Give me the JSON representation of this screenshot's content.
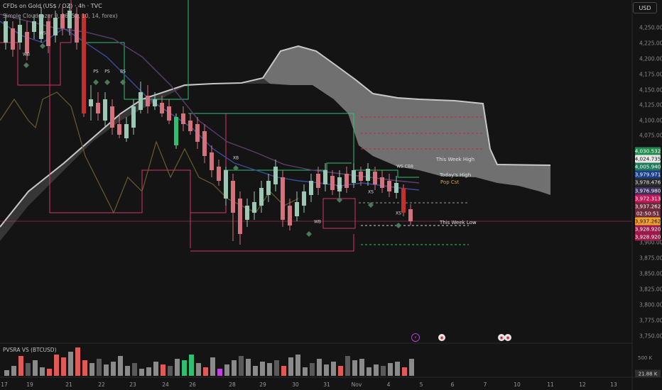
{
  "header": {
    "symbol_title": "CFDs on Gold (US$ / OZ) · 4h · TVC",
    "indicator_line": "Simple Cloudgazer 9, 26, 52, 10, 14, forex)"
  },
  "currency_button": "USD",
  "price_axis": [
    "4,250.000",
    "4,225.000",
    "4,200.000",
    "4,175.000",
    "4,150.000",
    "4,125.000",
    "4,100.000",
    "4,075.000",
    "3,900.000",
    "3,875.000",
    "3,850.000",
    "3,825.000",
    "3,800.000",
    "3,775.000",
    "3,750.000"
  ],
  "price_badges": [
    {
      "text": "4,030.532",
      "bg": "#1f8a4c",
      "fg": "#ffffff"
    },
    {
      "text": "4,024.735",
      "bg": "#e8e8e8",
      "fg": "#111111"
    },
    {
      "text": "4,005.940",
      "bg": "#1e7a5a",
      "fg": "#ffffff"
    },
    {
      "text": "3,979.971",
      "bg": "#1a3f8a",
      "fg": "#ffffff"
    },
    {
      "text": "3,978.476",
      "bg": "#2a2a2a",
      "fg": "#e0e0e0"
    },
    {
      "text": "3,976.980",
      "bg": "#3b2f5c",
      "fg": "#ffffff"
    },
    {
      "text": "3,972.313",
      "bg": "#c2185b",
      "fg": "#ffffff"
    },
    {
      "text": "3,937.262",
      "bg": "#6b2a3a",
      "fg": "#ffffff"
    },
    {
      "text": "02:50:51",
      "bg": "#6b2a3a",
      "fg": "#ffffff"
    },
    {
      "text": "3,937.262",
      "bg": "#f0a030",
      "fg": "#111111"
    },
    {
      "text": "3,928.920",
      "bg": "#9c1a4a",
      "fg": "#ffffff"
    },
    {
      "text": "3,928.920",
      "bg": "#9c1a4a",
      "fg": "#ffffff"
    }
  ],
  "time_axis": [
    "17",
    "19",
    "21",
    "22",
    "23",
    "24",
    "26",
    "28",
    "29",
    "30",
    "31",
    "Nov",
    "4",
    "5",
    "6",
    "7",
    "10",
    "11",
    "12",
    "13"
  ],
  "annotations": [
    "WB",
    "WS",
    "PS",
    "PS",
    "BS",
    "XB",
    "SB",
    "XS",
    "XS",
    "WB",
    "WS CB8"
  ],
  "levels": [
    {
      "text": "This Week High",
      "color": "#e0e0e0"
    },
    {
      "text": "Today's High",
      "color": "#e0e0e0"
    },
    {
      "text": "Pop Cst",
      "color": "#d4a040"
    },
    {
      "text": "This Week Low",
      "color": "#e0e0e0"
    }
  ],
  "volume_pane": {
    "title": "PVSRA VS (BTCUSD)",
    "axis": "500 K",
    "current": "21.88 K"
  },
  "colors": {
    "background": "#141414",
    "bull": "#9bc7b3",
    "bear": "#d1727d",
    "cloud": "#8a8a8a"
  },
  "icons": [
    "lightning-event-icon",
    "us-flag-event-icon",
    "us-flag-event-icon",
    "us-flag-event-icon"
  ]
}
